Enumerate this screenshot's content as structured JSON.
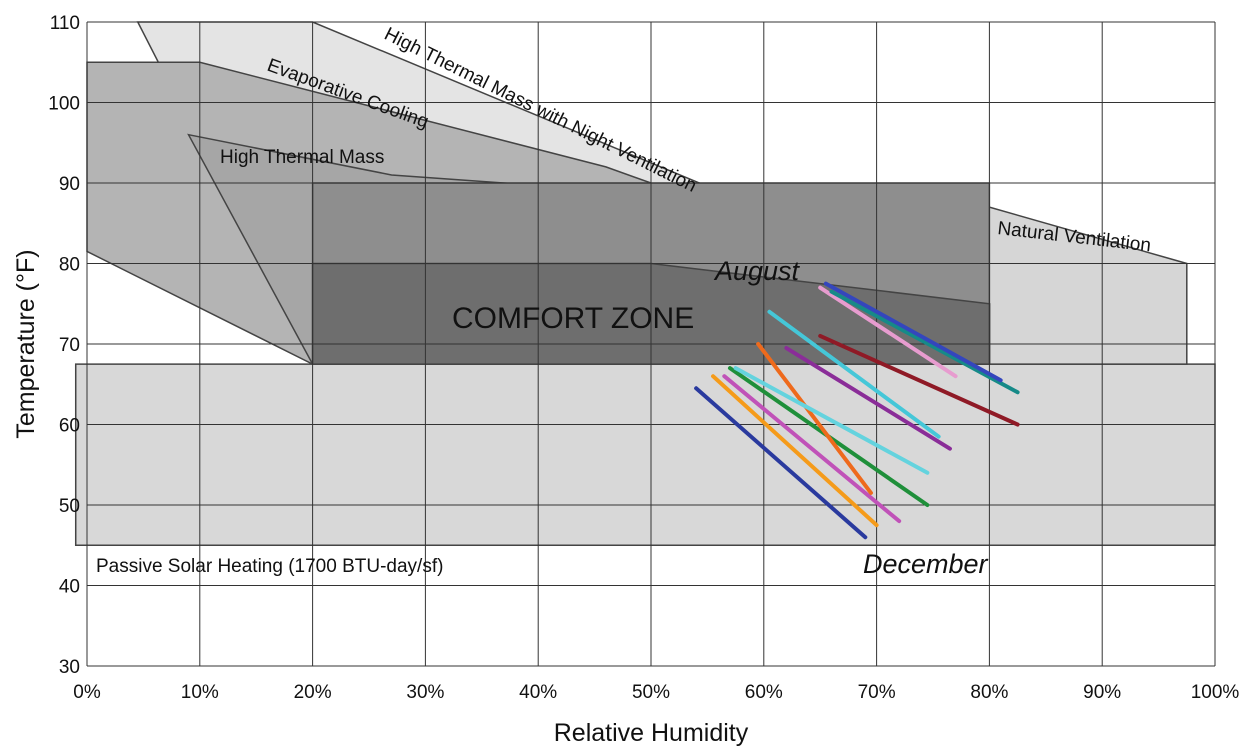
{
  "chart_data": {
    "type": "line",
    "xlabel": "Relative Humidity",
    "ylabel": "Temperature (°F)",
    "xlim": [
      0,
      100
    ],
    "ylim": [
      30,
      110
    ],
    "x_ticks": [
      "0%",
      "10%",
      "20%",
      "30%",
      "40%",
      "50%",
      "60%",
      "70%",
      "80%",
      "90%",
      "100%"
    ],
    "y_ticks": [
      "30",
      "40",
      "50",
      "60",
      "70",
      "80",
      "90",
      "100",
      "110"
    ],
    "grid": true,
    "zones": [
      {
        "label": "Passive Solar Heating (1700 BTU-day/sf)",
        "fill": "#d8d8d8",
        "points": [
          [
            -1,
            45
          ],
          [
            100,
            45
          ],
          [
            100,
            67.5
          ],
          [
            -1,
            67.5
          ]
        ]
      },
      {
        "label": "Natural Ventilation",
        "fill": "#d6d6d6",
        "points": [
          [
            20,
            67.5
          ],
          [
            20,
            90
          ],
          [
            80,
            87
          ],
          [
            97.5,
            80
          ],
          [
            97.5,
            67.5
          ]
        ]
      },
      {
        "label": "High Thermal Mass with Night Ventilation",
        "fill": "#e4e4e4",
        "points": [
          [
            4.5,
            110
          ],
          [
            20,
            110
          ],
          [
            80,
            75
          ],
          [
            80,
            67.5
          ],
          [
            20,
            67.5
          ]
        ]
      },
      {
        "label": "Evaporative Cooling",
        "fill": "#b4b4b4",
        "points": [
          [
            0,
            105
          ],
          [
            10,
            105
          ],
          [
            46,
            92
          ],
          [
            80,
            75
          ],
          [
            80,
            67.5
          ],
          [
            20,
            67.5
          ],
          [
            0,
            81.5
          ]
        ]
      },
      {
        "label": "High Thermal Mass",
        "fill": "#a6a6a6",
        "points": [
          [
            9,
            96
          ],
          [
            27,
            91
          ],
          [
            47,
            89
          ],
          [
            80,
            75
          ],
          [
            80,
            67.5
          ],
          [
            20,
            67.5
          ]
        ]
      },
      {
        "label": "",
        "fill": "#8e8e8e",
        "points": [
          [
            20,
            67.5
          ],
          [
            20,
            90
          ],
          [
            80,
            90
          ],
          [
            80,
            67.5
          ]
        ]
      },
      {
        "label": "COMFORT ZONE",
        "fill": "#6e6e6e",
        "points": [
          [
            20,
            67.5
          ],
          [
            20,
            80
          ],
          [
            50,
            80
          ],
          [
            80,
            75
          ],
          [
            80,
            67.5
          ]
        ]
      }
    ],
    "labels": [
      "High Thermal Mass with Night Ventilation",
      "Evaporative Cooling",
      "High Thermal Mass",
      "Natural Ventilation",
      "COMFORT ZONE",
      "Passive Solar Heating (1700 BTU-day/sf)"
    ],
    "annotations": [
      "August",
      "December"
    ],
    "series": [
      {
        "color": "#2a3a9e",
        "points": [
          [
            54,
            64.5
          ],
          [
            69,
            46
          ]
        ]
      },
      {
        "color": "#f59b1a",
        "points": [
          [
            55.5,
            66
          ],
          [
            70,
            47.5
          ]
        ]
      },
      {
        "color": "#c052b8",
        "points": [
          [
            56.5,
            66
          ],
          [
            72,
            48
          ]
        ]
      },
      {
        "color": "#1f8f3a",
        "points": [
          [
            57,
            67
          ],
          [
            74.5,
            50
          ]
        ]
      },
      {
        "color": "#ee6a1c",
        "points": [
          [
            59.5,
            70
          ],
          [
            69.5,
            51.5
          ]
        ]
      },
      {
        "color": "#64d3de",
        "points": [
          [
            57.5,
            67
          ],
          [
            74.5,
            54
          ]
        ]
      },
      {
        "color": "#45c7d8",
        "points": [
          [
            60.5,
            74
          ],
          [
            75.5,
            58.5
          ]
        ]
      },
      {
        "color": "#8a2d98",
        "points": [
          [
            62,
            69.5
          ],
          [
            76.5,
            57
          ]
        ]
      },
      {
        "color": "#8f1a26",
        "points": [
          [
            65,
            71
          ],
          [
            82.5,
            60
          ]
        ]
      },
      {
        "color": "#e79ccf",
        "points": [
          [
            65,
            77
          ],
          [
            77,
            66
          ]
        ]
      },
      {
        "color": "#168a88",
        "points": [
          [
            66,
            76.5
          ],
          [
            82.5,
            64
          ]
        ]
      },
      {
        "color": "#3446bd",
        "points": [
          [
            65.5,
            77.5
          ],
          [
            81,
            65.5
          ]
        ]
      }
    ]
  }
}
